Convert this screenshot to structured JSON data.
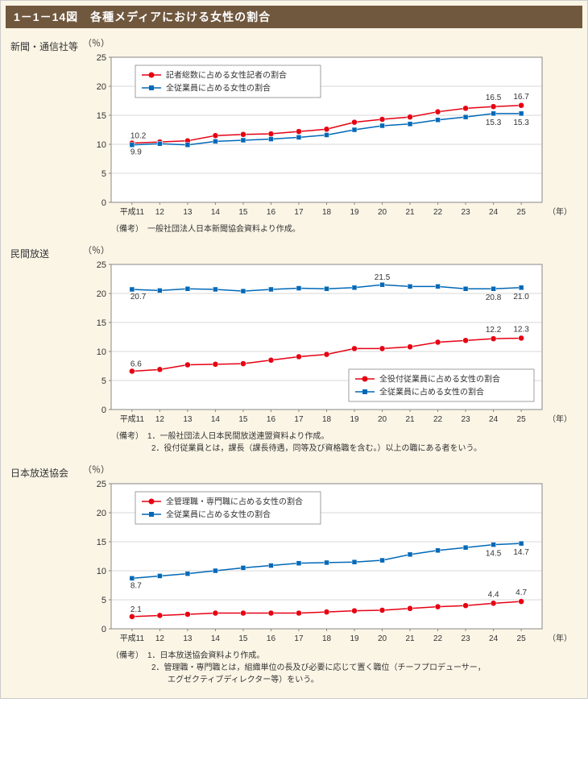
{
  "title": "1－1－14図　各種メディアにおける女性の割合",
  "background_color": "#fbf5e6",
  "title_bar_color": "#70583f",
  "x_categories": [
    "平成11",
    "12",
    "13",
    "14",
    "15",
    "16",
    "17",
    "18",
    "19",
    "20",
    "21",
    "22",
    "23",
    "24",
    "25"
  ],
  "x_axis_suffix": "（年）",
  "y_unit": "（％）",
  "y_ticks": [
    0,
    5,
    10,
    15,
    20,
    25
  ],
  "ylim": [
    0,
    25
  ],
  "colors": {
    "red": "#e60012",
    "blue": "#0068b7",
    "grid": "#b0b0b0",
    "frame": "#888888",
    "plot_bg": "#ffffff",
    "text": "#333333"
  },
  "charts": [
    {
      "section_label": "新聞・通信社等",
      "legend_pos": "top-left",
      "series": [
        {
          "label": "記者総数に占める女性記者の割合",
          "color": "#e60012",
          "marker": "circle",
          "values": [
            10.2,
            10.4,
            10.6,
            11.5,
            11.7,
            11.8,
            12.2,
            12.6,
            13.8,
            14.3,
            14.7,
            15.6,
            16.2,
            16.5,
            16.7
          ],
          "start_label": "10.2",
          "end_labels": [
            "16.5",
            "16.7"
          ]
        },
        {
          "label": "全従業員に占める女性の割合",
          "color": "#0068b7",
          "marker": "square",
          "values": [
            9.9,
            10.1,
            9.9,
            10.5,
            10.7,
            10.9,
            11.2,
            11.6,
            12.5,
            13.2,
            13.5,
            14.2,
            14.7,
            15.3,
            15.3
          ],
          "start_label": "9.9",
          "end_labels": [
            "15.3",
            "15.3"
          ]
        }
      ],
      "note": "（備考）　一般社団法人日本新聞協会資料より作成。"
    },
    {
      "section_label": "民間放送",
      "legend_pos": "bottom-right",
      "series": [
        {
          "label": "全役付従業員に占める女性の割合",
          "color": "#e60012",
          "marker": "circle",
          "values": [
            6.6,
            6.9,
            7.7,
            7.8,
            7.9,
            8.5,
            9.1,
            9.5,
            10.5,
            10.5,
            10.8,
            11.6,
            11.9,
            12.2,
            12.3
          ],
          "start_label": "6.6",
          "end_labels": [
            "12.2",
            "12.3"
          ]
        },
        {
          "label": "全従業員に占める女性の割合",
          "color": "#0068b7",
          "marker": "square",
          "values": [
            20.7,
            20.5,
            20.8,
            20.7,
            20.4,
            20.7,
            20.9,
            20.8,
            21.0,
            21.5,
            21.2,
            21.2,
            20.8,
            20.8,
            21.0
          ],
          "start_label": "20.7",
          "end_labels": [
            "20.8",
            "21.0"
          ],
          "peak_label": {
            "index": 9,
            "text": "21.5"
          }
        }
      ],
      "note": "（備考）　1．一般社団法人日本民間放送連盟資料より作成。\n　　　　　2．役付従業員とは，課長（課長待遇，同等及び資格職を含む。）以上の職にある者をいう。"
    },
    {
      "section_label": "日本放送協会",
      "legend_pos": "top-left",
      "series": [
        {
          "label": "全管理職・専門職に占める女性の割合",
          "color": "#e60012",
          "marker": "circle",
          "values": [
            2.1,
            2.3,
            2.5,
            2.7,
            2.7,
            2.7,
            2.7,
            2.9,
            3.1,
            3.2,
            3.5,
            3.8,
            4.0,
            4.4,
            4.7
          ],
          "start_label": "2.1",
          "end_labels": [
            "4.4",
            "4.7"
          ]
        },
        {
          "label": "全従業員に占める女性の割合",
          "color": "#0068b7",
          "marker": "square",
          "values": [
            8.7,
            9.1,
            9.5,
            10.0,
            10.5,
            10.9,
            11.3,
            11.4,
            11.5,
            11.8,
            12.8,
            13.5,
            14.0,
            14.5,
            14.7
          ],
          "start_label": "8.7",
          "end_labels": [
            "14.5",
            "14.7"
          ]
        }
      ],
      "note": "（備考）　1．日本放送協会資料より作成。\n　　　　　2．管理職・専門職とは，組織単位の長及び必要に応じて置く職位（チーフプロデューサー，\n　　　　　　　エグゼクティブディレクター等）をいう。"
    }
  ]
}
